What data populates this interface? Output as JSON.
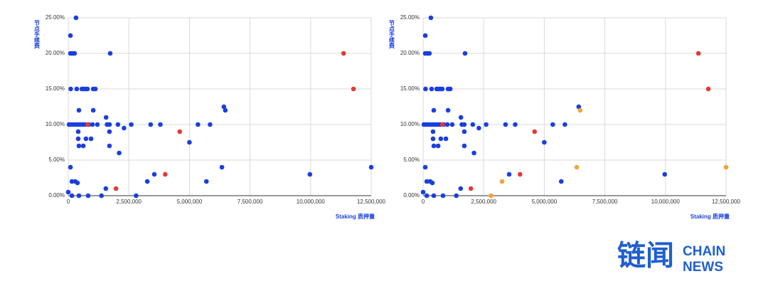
{
  "chart_data": [
    {
      "type": "scatter",
      "y_label": "节点手续费",
      "x_label": "Staking 质押量",
      "xlim": [
        0,
        12500000
      ],
      "ylim": [
        0,
        25
      ],
      "grid": true,
      "xticks": [
        0,
        {
          "value": 2500000,
          "label": "2,500,000"
        },
        {
          "value": 5000000,
          "label": "5,000,000"
        },
        {
          "value": 7500000,
          "label": "7,500,000"
        },
        {
          "value": 10000000,
          "label": "10,000,000"
        },
        {
          "value": 12500000,
          "label": "12,500,000"
        }
      ],
      "yticks": [
        {
          "value": 0,
          "label": "0.00%"
        },
        {
          "value": 5,
          "label": "5.00%"
        },
        {
          "value": 10,
          "label": "10.00%"
        },
        {
          "value": 15,
          "label": "15.00%"
        },
        {
          "value": 20,
          "label": "20.00%"
        },
        {
          "value": 25,
          "label": "25.00%"
        }
      ],
      "series": [
        {
          "color": "#1a3fe0",
          "x": [
            320000,
            90000,
            90000,
            180000,
            260000,
            1730000,
            100000,
            350000,
            560000,
            620000,
            700000,
            790000,
            1030000,
            1120000,
            30000,
            100000,
            200000,
            300000,
            400000,
            500000,
            600000,
            700000,
            850000,
            1000000,
            1200000,
            1600000,
            1700000,
            2050000,
            2600000,
            3400000,
            3800000,
            5350000,
            5850000,
            440000,
            1030000,
            1560000,
            410000,
            1700000,
            2300000,
            410000,
            730000,
            940000,
            440000,
            620000,
            1700000,
            2100000,
            5000000,
            6420000,
            6480000,
            90000,
            6340000,
            9970000,
            12500000,
            150000,
            290000,
            380000,
            3260000,
            3550000,
            5700000,
            0,
            150000,
            440000,
            820000,
            1370000,
            2800000,
            1550000
          ],
          "values": [
            25,
            22.5,
            20,
            20,
            20,
            20,
            15,
            15,
            15,
            15,
            15,
            15,
            15,
            15,
            10,
            10,
            10,
            10,
            10,
            10,
            10,
            10,
            10,
            10,
            10,
            10,
            10,
            10,
            10,
            10,
            10,
            10,
            10,
            12,
            12,
            11,
            9,
            9,
            9.5,
            8,
            8,
            8,
            7,
            7,
            7,
            6,
            7.5,
            12.5,
            12,
            4,
            4,
            3,
            4,
            2,
            2,
            1.8,
            2,
            3,
            2,
            0.5,
            0,
            0,
            0,
            0,
            0,
            1
          ]
        },
        {
          "color": "#e53935",
          "x": [
            11360000,
            11770000,
            4600000,
            4000000,
            1970000,
            800000
          ],
          "values": [
            20,
            15,
            9,
            3,
            1,
            10
          ]
        }
      ]
    },
    {
      "type": "scatter",
      "y_label": "节点手续费",
      "x_label": "Staking 质押量",
      "xlim": [
        0,
        12500000
      ],
      "ylim": [
        0,
        25
      ],
      "grid": true,
      "xticks": [
        0,
        {
          "value": 2500000,
          "label": "2,500,000"
        },
        {
          "value": 5000000,
          "label": "5,000,000"
        },
        {
          "value": 7500000,
          "label": "7,500,000"
        },
        {
          "value": 10000000,
          "label": "10,000,000"
        },
        {
          "value": 12500000,
          "label": "12,500,000"
        }
      ],
      "yticks": [
        {
          "value": 0,
          "label": "0.00%"
        },
        {
          "value": 5,
          "label": "5.00%"
        },
        {
          "value": 10,
          "label": "10.00%"
        },
        {
          "value": 15,
          "label": "15.00%"
        },
        {
          "value": 20,
          "label": "20.00%"
        },
        {
          "value": 25,
          "label": "25.00%"
        }
      ],
      "series": [
        {
          "color": "#1a3fe0",
          "x": [
            320000,
            90000,
            90000,
            180000,
            260000,
            1730000,
            100000,
            350000,
            560000,
            620000,
            700000,
            790000,
            1030000,
            1120000,
            30000,
            100000,
            200000,
            300000,
            400000,
            500000,
            600000,
            700000,
            850000,
            1000000,
            1200000,
            1600000,
            1700000,
            2050000,
            2600000,
            3400000,
            3800000,
            5350000,
            5850000,
            440000,
            1030000,
            1560000,
            410000,
            1700000,
            2300000,
            410000,
            730000,
            940000,
            440000,
            620000,
            1700000,
            2100000,
            5000000,
            6420000,
            90000,
            9970000,
            150000,
            290000,
            380000,
            3550000,
            5700000,
            0,
            150000,
            440000,
            820000,
            1370000,
            1550000
          ],
          "values": [
            25,
            22.5,
            20,
            20,
            20,
            20,
            15,
            15,
            15,
            15,
            15,
            15,
            15,
            15,
            10,
            10,
            10,
            10,
            10,
            10,
            10,
            10,
            10,
            10,
            10,
            10,
            10,
            10,
            10,
            10,
            10,
            10,
            10,
            12,
            12,
            11,
            9,
            9,
            9.5,
            8,
            8,
            8,
            7,
            7,
            7,
            6,
            7.5,
            12.5,
            4,
            3,
            2,
            2,
            1.8,
            3,
            2,
            0.5,
            0,
            0,
            0,
            0,
            1
          ]
        },
        {
          "color": "#e53935",
          "x": [
            11360000,
            11770000,
            4600000,
            4000000,
            1970000,
            800000
          ],
          "values": [
            20,
            15,
            9,
            3,
            1,
            10
          ]
        },
        {
          "color": "#f2a33a",
          "x": [
            6480000,
            6340000,
            12500000,
            3260000,
            2800000
          ],
          "values": [
            12,
            4,
            4,
            2,
            0
          ]
        }
      ]
    }
  ],
  "logo": {
    "mark": "链闻",
    "lines": [
      "CHAIN",
      "NEWS"
    ]
  }
}
